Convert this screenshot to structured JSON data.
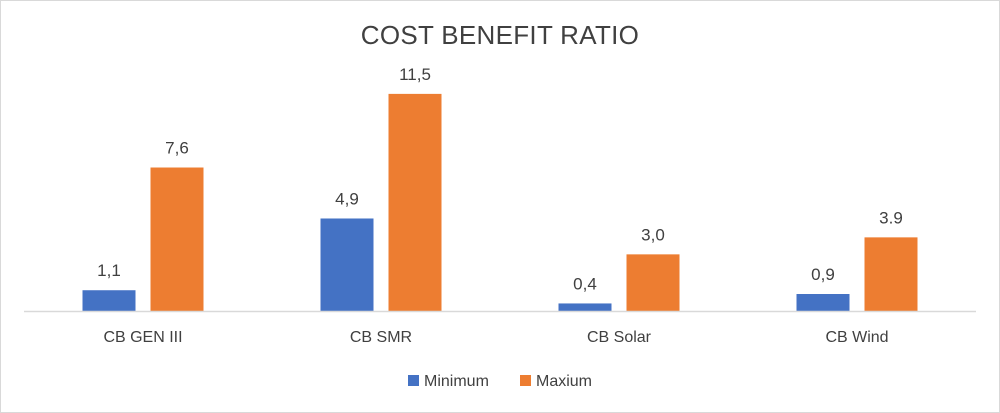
{
  "chart_data": {
    "type": "bar",
    "title": "COST BENEFIT RATIO",
    "categories": [
      "CB GEN III",
      "CB SMR",
      "CB Solar",
      "CB Wind"
    ],
    "series": [
      {
        "name": "Minimum",
        "values": [
          1.1,
          4.9,
          0.4,
          0.9
        ],
        "labels": [
          "1,1",
          "4,9",
          "0,4",
          "0,9"
        ],
        "color": "#4472C4"
      },
      {
        "name": "Maxium",
        "values": [
          7.6,
          11.5,
          3.0,
          3.9
        ],
        "labels": [
          "7,6",
          "11,5",
          "3,0",
          "3.9"
        ],
        "color": "#ED7D31"
      }
    ],
    "ylim": [
      0,
      12.5
    ],
    "grid": false,
    "legend": "bottom",
    "axis_color": "#d9d9d9"
  }
}
